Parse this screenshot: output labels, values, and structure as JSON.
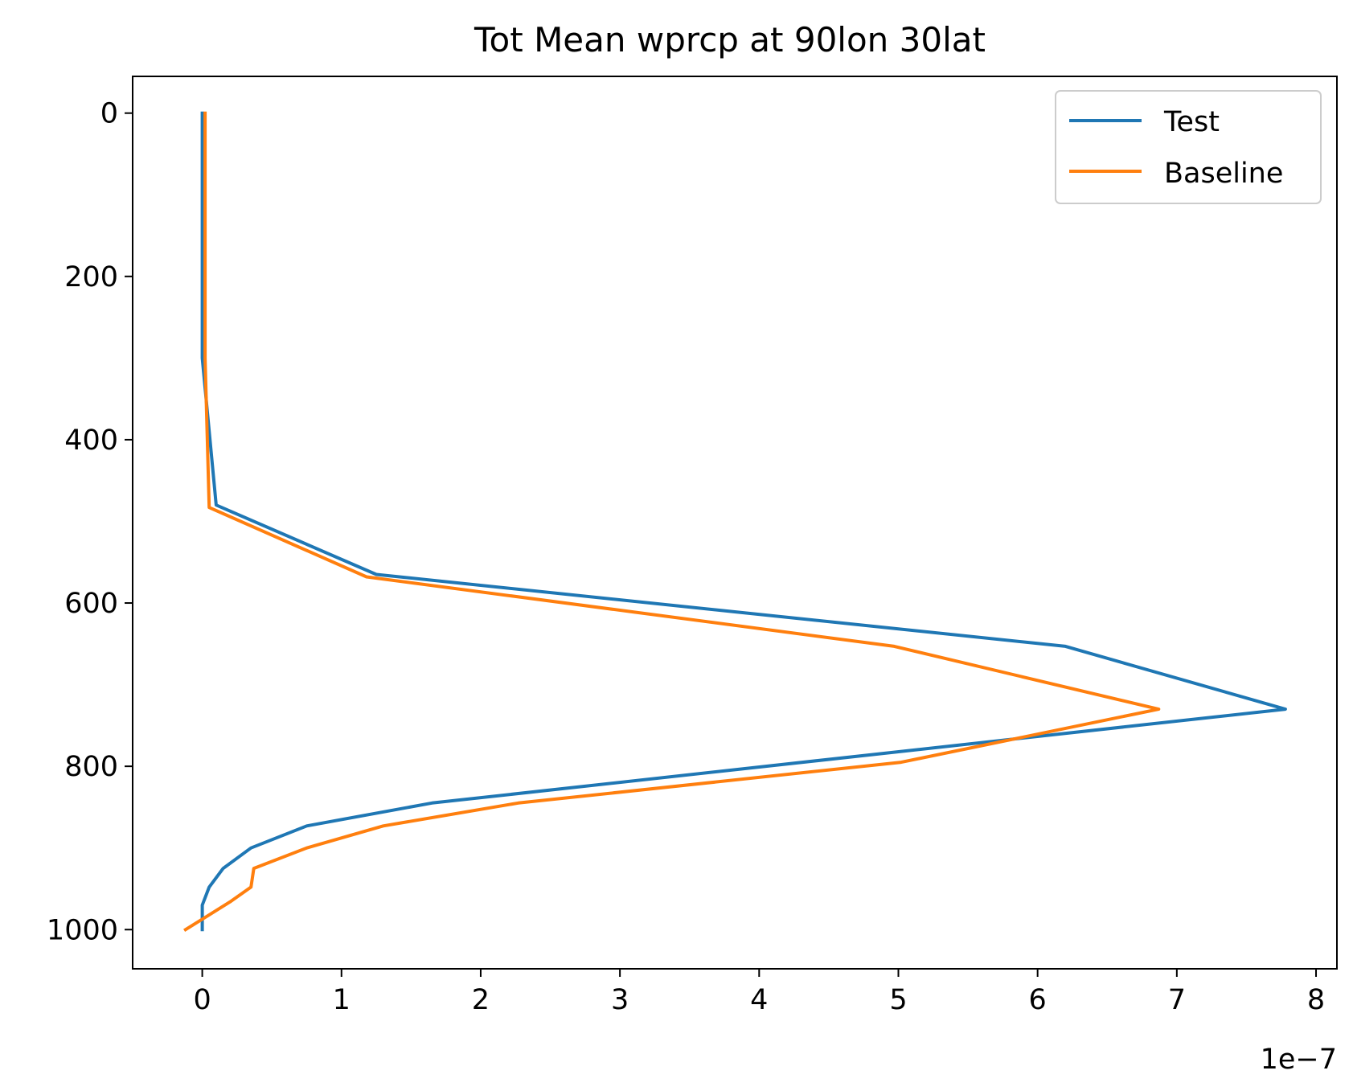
{
  "chart_data": {
    "type": "line",
    "title": "Tot Mean wprcp at 90lon 30lat",
    "xlabel": "",
    "ylabel": "",
    "x_offset_text": "1e−7",
    "x_scale_factor": 1e-07,
    "xlim": [
      -0.5,
      8.15
    ],
    "ylim": [
      1048,
      -45
    ],
    "y_inverted": true,
    "x_ticks": [
      0,
      1,
      2,
      3,
      4,
      5,
      6,
      7,
      8
    ],
    "x_tick_labels": [
      "0",
      "1",
      "2",
      "3",
      "4",
      "5",
      "6",
      "7",
      "8"
    ],
    "y_ticks": [
      0,
      200,
      400,
      600,
      800,
      1000
    ],
    "y_tick_labels": [
      "0",
      "200",
      "400",
      "600",
      "800",
      "1000"
    ],
    "grid": false,
    "legend": {
      "position": "top-right",
      "entries": [
        "Test",
        "Baseline"
      ]
    },
    "series": [
      {
        "name": "Test",
        "color": "#1f77b4",
        "x": [
          0,
          0,
          0,
          0.1,
          1.25,
          6.2,
          7.78,
          1.65,
          0.75,
          0.35,
          0.15,
          0.05,
          0,
          0
        ],
        "y": [
          0,
          100,
          300,
          480,
          565,
          653,
          730,
          845,
          873,
          900,
          925,
          948,
          970,
          1000
        ]
      },
      {
        "name": "Baseline",
        "color": "#ff7f0e",
        "x": [
          0.02,
          0.02,
          0.02,
          0.05,
          1.18,
          4.97,
          6.87,
          5.02,
          2.27,
          1.3,
          0.75,
          0.37,
          0.35,
          0.2,
          -0.12
        ],
        "y": [
          0,
          100,
          300,
          483,
          568,
          653,
          730,
          795,
          845,
          873,
          900,
          925,
          948,
          966,
          1000
        ]
      }
    ]
  }
}
